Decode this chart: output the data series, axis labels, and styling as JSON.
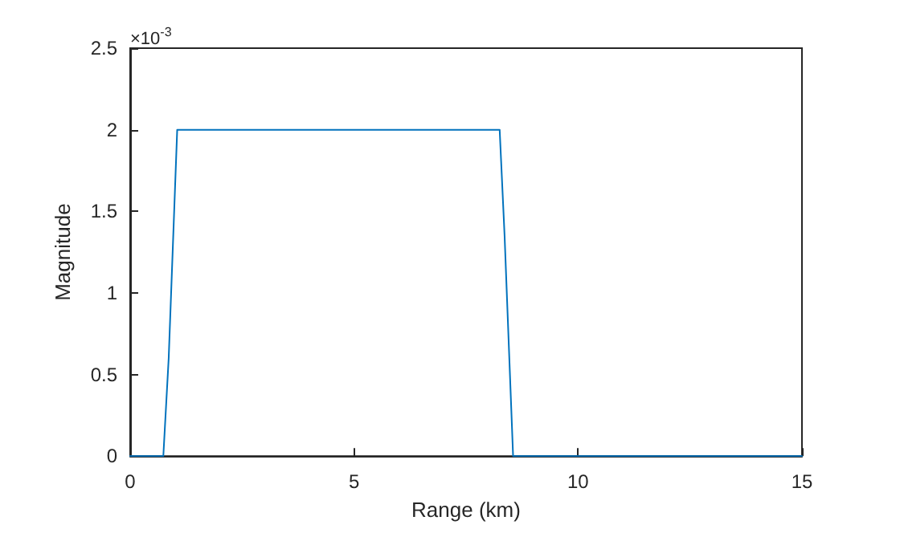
{
  "chart_data": {
    "type": "line",
    "xlabel": "Range (km)",
    "ylabel": "Magnitude",
    "annotations": [
      "×10$^{-3}$"
    ],
    "series": [
      {
        "color": "#0072bd",
        "x": [
          0,
          0.74,
          0.86,
          1.05,
          8.25,
          8.36,
          8.55,
          15
        ],
        "values": [
          0,
          0,
          0.6,
          2,
          2,
          1.35,
          0,
          0
        ]
      }
    ],
    "xlim": [
      0,
      15
    ],
    "xticks": [
      0,
      5,
      10,
      15
    ],
    "ylim": [
      0,
      2.5
    ],
    "yticks": [
      0,
      0.5,
      1,
      1.5,
      2,
      2.5
    ],
    "grid": false,
    "marker": "none",
    "line_style": "solid"
  }
}
